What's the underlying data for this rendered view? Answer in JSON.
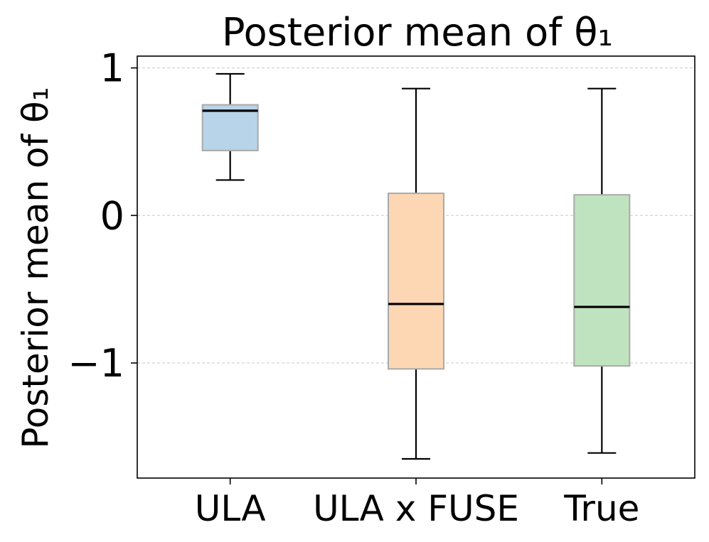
{
  "chart_data": {
    "type": "box",
    "title": "Posterior mean of θ₁",
    "xlabel": "",
    "ylabel": "Posterior mean of θ₁",
    "ylim": [
      -1.78,
      1.08
    ],
    "yticks": [
      {
        "value": 1,
        "label": "1"
      },
      {
        "value": 0,
        "label": "0"
      },
      {
        "value": -1,
        "label": "−1"
      }
    ],
    "grid": true,
    "categories": [
      "ULA",
      "ULA x FUSE",
      "True"
    ],
    "boxes": [
      {
        "name": "ULA",
        "whisker_low": 0.24,
        "q1": 0.44,
        "median": 0.71,
        "q3": 0.75,
        "whisker_high": 0.96,
        "color": "#b8d4e8"
      },
      {
        "name": "ULA x FUSE",
        "whisker_low": -1.65,
        "q1": -1.04,
        "median": -0.6,
        "q3": 0.15,
        "whisker_high": 0.86,
        "color": "#fdd7b4"
      },
      {
        "name": "True",
        "whisker_low": -1.61,
        "q1": -1.02,
        "median": -0.62,
        "q3": 0.14,
        "whisker_high": 0.86,
        "color": "#c0e3bf"
      }
    ]
  }
}
